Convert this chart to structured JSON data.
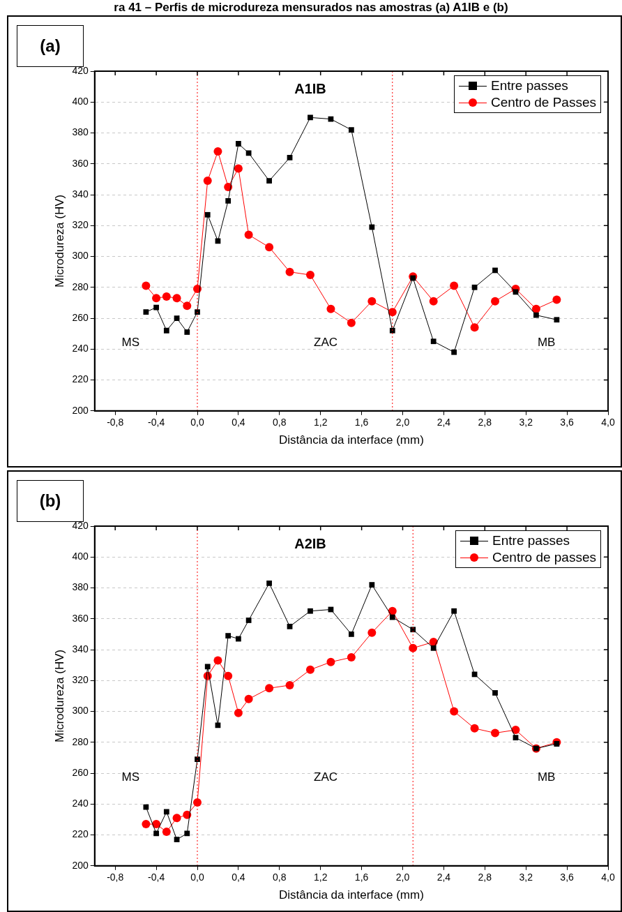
{
  "chart_data": [
    {
      "type": "line",
      "title": "A1IB",
      "subtitle": "(a)",
      "xlabel": "Distância da interface (mm)",
      "ylabel": "Microdureza (HV)",
      "annotations": [
        "MS",
        "ZAC",
        "MB",
        "ra 41 – Perfis de microdureza mensurados nas amostras (a) A1IB e (b)"
      ],
      "x": [
        -0.5,
        -0.4,
        -0.3,
        -0.2,
        -0.1,
        0,
        0.1,
        0.2,
        0.3,
        0.4,
        0.5,
        0.7,
        0.9,
        1.1,
        1.3,
        1.5,
        1.7,
        1.9,
        2.1,
        2.3,
        2.5,
        2.7,
        2.9,
        3.1,
        3.3,
        3.5
      ],
      "series": [
        {
          "name": "Entre passes",
          "color": "#000000",
          "marker": "square",
          "values": [
            264,
            267,
            252,
            260,
            251,
            264,
            327,
            310,
            336,
            373,
            367,
            349,
            364,
            390,
            389,
            382,
            319,
            252,
            286,
            245,
            238,
            280,
            291,
            277,
            262,
            259
          ]
        },
        {
          "name": "Centro de Passes",
          "color": "#ff0000",
          "marker": "circle",
          "values": [
            281,
            273,
            274,
            273,
            268,
            279,
            349,
            368,
            345,
            357,
            314,
            306,
            290,
            288,
            266,
            257,
            271,
            264,
            287,
            271,
            281,
            254,
            271,
            279,
            266,
            272
          ]
        }
      ],
      "xlim": [
        -1.0,
        4.0
      ],
      "xticks": [
        {
          "value": -0.8,
          "label": "-0,8"
        },
        {
          "value": -0.4,
          "label": "-0,4"
        },
        {
          "value": 0,
          "label": "0,0"
        },
        {
          "value": 0.4,
          "label": "0,4"
        },
        {
          "value": 0.8,
          "label": "0,8"
        },
        {
          "value": 1.2,
          "label": "1,2"
        },
        {
          "value": 1.6,
          "label": "1,6"
        },
        {
          "value": 2.0,
          "label": "2,0"
        },
        {
          "value": 2.4,
          "label": "2,4"
        },
        {
          "value": 2.8,
          "label": "2,8"
        },
        {
          "value": 3.2,
          "label": "3,2"
        },
        {
          "value": 3.6,
          "label": "3,6"
        },
        {
          "value": 4.0,
          "label": "4,0"
        }
      ],
      "ylim": [
        200,
        420
      ],
      "yticks": [
        200,
        220,
        240,
        260,
        280,
        300,
        320,
        340,
        360,
        380,
        400,
        420
      ],
      "grid": "y",
      "legend": "top right",
      "line_style": "solid",
      "ref_lines": [
        {
          "axis": "x",
          "value": 0,
          "color": "#ff0000",
          "line_style": "dotted"
        },
        {
          "axis": "x",
          "value": 1.9,
          "color": "#ff0000",
          "line_style": "dotted"
        }
      ]
    },
    {
      "type": "line",
      "title": "A2IB",
      "subtitle": "(b)",
      "xlabel": "Distância da interface (mm)",
      "ylabel": "Microdureza (HV)",
      "annotations": [
        "MS",
        "ZAC",
        "MB"
      ],
      "x": [
        -0.5,
        -0.4,
        -0.3,
        -0.2,
        -0.1,
        0,
        0.1,
        0.2,
        0.3,
        0.4,
        0.5,
        0.7,
        0.9,
        1.1,
        1.3,
        1.5,
        1.7,
        1.9,
        2.1,
        2.3,
        2.5,
        2.7,
        2.9,
        3.1,
        3.3,
        3.5
      ],
      "series": [
        {
          "name": "Entre passes",
          "color": "#000000",
          "marker": "square",
          "values": [
            238,
            221,
            235,
            217,
            221,
            269,
            329,
            291,
            349,
            347,
            359,
            383,
            355,
            365,
            366,
            350,
            382,
            361,
            353,
            341,
            365,
            324,
            312,
            283,
            276,
            279
          ]
        },
        {
          "name": "Centro de passes",
          "color": "#ff0000",
          "marker": "circle",
          "values": [
            227,
            227,
            222,
            231,
            233,
            241,
            323,
            333,
            323,
            299,
            308,
            315,
            317,
            327,
            332,
            335,
            351,
            365,
            341,
            345,
            300,
            289,
            286,
            288,
            276,
            280
          ]
        }
      ],
      "xlim": [
        -1.0,
        4.0
      ],
      "xticks": [
        {
          "value": -0.8,
          "label": "-0,8"
        },
        {
          "value": -0.4,
          "label": "-0,4"
        },
        {
          "value": 0,
          "label": "0,0"
        },
        {
          "value": 0.4,
          "label": "0,4"
        },
        {
          "value": 0.8,
          "label": "0,8"
        },
        {
          "value": 1.2,
          "label": "1,2"
        },
        {
          "value": 1.6,
          "label": "1,6"
        },
        {
          "value": 2.0,
          "label": "2,0"
        },
        {
          "value": 2.4,
          "label": "2,4"
        },
        {
          "value": 2.8,
          "label": "2,8"
        },
        {
          "value": 3.2,
          "label": "3,2"
        },
        {
          "value": 3.6,
          "label": "3,6"
        },
        {
          "value": 4.0,
          "label": "4,0"
        }
      ],
      "ylim": [
        200,
        420
      ],
      "yticks": [
        200,
        220,
        240,
        260,
        280,
        300,
        320,
        340,
        360,
        380,
        400,
        420
      ],
      "grid": "y",
      "legend": "top right",
      "line_style": "solid",
      "ref_lines": [
        {
          "axis": "x",
          "value": 0,
          "color": "#ff0000",
          "line_style": "dotted"
        },
        {
          "axis": "x",
          "value": 2.1,
          "color": "#ff0000",
          "line_style": "dotted"
        }
      ]
    }
  ]
}
